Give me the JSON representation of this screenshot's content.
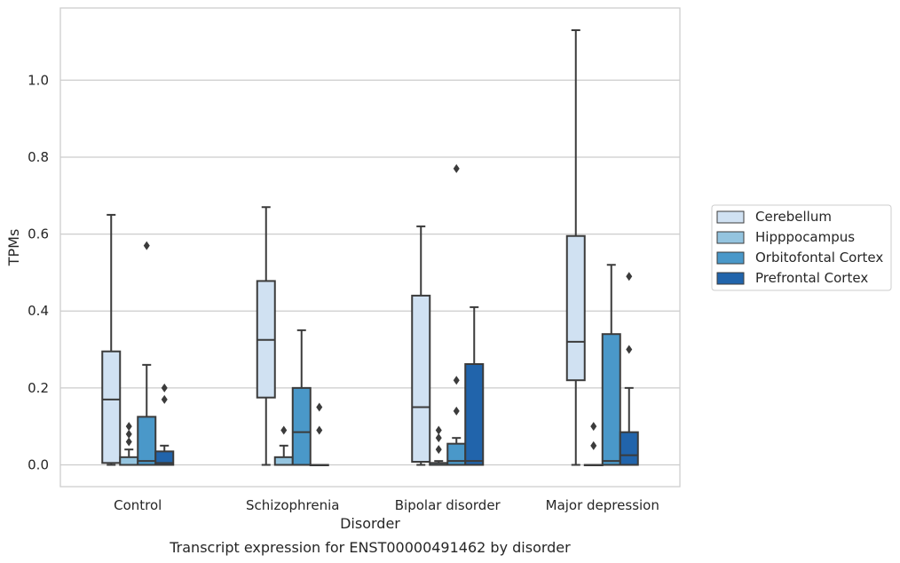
{
  "chart_data": {
    "type": "box",
    "caption": "Transcript expression for ENST00000491462 by disorder",
    "xlabel": "Disorder",
    "ylabel": "TPMs",
    "ylim": [
      -0.055,
      1.18
    ],
    "yticks": [
      "0.0",
      "0.2",
      "0.4",
      "0.6",
      "0.8",
      "1.0"
    ],
    "grid": true,
    "legend_position": "right",
    "categories": [
      "Control",
      "Schizophrenia",
      "Bipolar disorder",
      "Major depression"
    ],
    "series": [
      {
        "name": "Cerebellum",
        "color": "#d0e1f2",
        "boxes": [
          {
            "whislo": 0.0,
            "q1": 0.005,
            "med": 0.17,
            "q3": 0.295,
            "whishi": 0.65,
            "fliers": []
          },
          {
            "whislo": 0.0,
            "q1": 0.175,
            "med": 0.325,
            "q3": 0.478,
            "whishi": 0.67,
            "fliers": []
          },
          {
            "whislo": 0.0,
            "q1": 0.008,
            "med": 0.15,
            "q3": 0.44,
            "whishi": 0.62,
            "fliers": []
          },
          {
            "whislo": 0.0,
            "q1": 0.22,
            "med": 0.32,
            "q3": 0.595,
            "whishi": 1.13,
            "fliers": []
          }
        ]
      },
      {
        "name": "Hipppocampus",
        "color": "#94c4df",
        "boxes": [
          {
            "whislo": 0.0,
            "q1": 0.0,
            "med": 0.0,
            "q3": 0.02,
            "whishi": 0.04,
            "fliers": [
              0.06,
              0.08,
              0.1
            ]
          },
          {
            "whislo": 0.0,
            "q1": 0.0,
            "med": 0.0,
            "q3": 0.02,
            "whishi": 0.05,
            "fliers": [
              0.09
            ]
          },
          {
            "whislo": 0.0,
            "q1": 0.0,
            "med": 0.0,
            "q3": 0.005,
            "whishi": 0.01,
            "fliers": [
              0.04,
              0.07,
              0.09
            ]
          },
          {
            "whislo": 0.0,
            "q1": 0.0,
            "med": 0.0,
            "q3": 0.0,
            "whishi": 0.0,
            "fliers": [
              0.05,
              0.1
            ]
          }
        ]
      },
      {
        "name": "Orbitofontal Cortex",
        "color": "#4a98c9",
        "boxes": [
          {
            "whislo": 0.0,
            "q1": 0.0,
            "med": 0.01,
            "q3": 0.125,
            "whishi": 0.26,
            "fliers": [
              0.57
            ]
          },
          {
            "whislo": 0.0,
            "q1": 0.0,
            "med": 0.085,
            "q3": 0.2,
            "whishi": 0.35,
            "fliers": []
          },
          {
            "whislo": 0.0,
            "q1": 0.0,
            "med": 0.01,
            "q3": 0.055,
            "whishi": 0.07,
            "fliers": [
              0.14,
              0.22,
              0.77
            ]
          },
          {
            "whislo": 0.0,
            "q1": 0.0,
            "med": 0.01,
            "q3": 0.34,
            "whishi": 0.52,
            "fliers": []
          }
        ]
      },
      {
        "name": "Prefrontal Cortex",
        "color": "#2164ab",
        "boxes": [
          {
            "whislo": 0.0,
            "q1": 0.0,
            "med": 0.005,
            "q3": 0.035,
            "whishi": 0.05,
            "fliers": [
              0.17,
              0.2
            ]
          },
          {
            "whislo": 0.0,
            "q1": 0.0,
            "med": 0.0,
            "q3": 0.0,
            "whishi": 0.0,
            "fliers": [
              0.09,
              0.15
            ]
          },
          {
            "whislo": 0.0,
            "q1": 0.0,
            "med": 0.01,
            "q3": 0.262,
            "whishi": 0.41,
            "fliers": []
          },
          {
            "whislo": 0.0,
            "q1": 0.0,
            "med": 0.025,
            "q3": 0.085,
            "whishi": 0.2,
            "fliers": [
              0.3,
              0.49
            ]
          }
        ]
      }
    ]
  }
}
